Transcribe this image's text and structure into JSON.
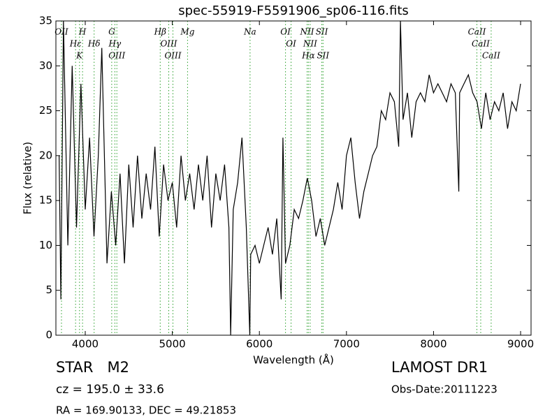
{
  "chart_data": {
    "type": "line",
    "title": "spec-55919-F5591906_sp06-116.fits",
    "x_label": "Wavelength (Å)",
    "y_label": "Flux (relative)",
    "xlim": [
      3663,
      9120
    ],
    "ylim": [
      0,
      35
    ],
    "xticks": [
      4000,
      5000,
      6000,
      7000,
      8000,
      9000
    ],
    "yticks": [
      0,
      5,
      10,
      15,
      20,
      25,
      30,
      35
    ],
    "color": "#000000",
    "x": [
      3700,
      3720,
      3750,
      3800,
      3850,
      3900,
      3950,
      4000,
      4050,
      4100,
      4150,
      4190,
      4250,
      4300,
      4350,
      4400,
      4450,
      4500,
      4550,
      4600,
      4650,
      4700,
      4750,
      4800,
      4850,
      4900,
      4950,
      5000,
      5050,
      5100,
      5150,
      5200,
      5250,
      5300,
      5350,
      5400,
      5450,
      5500,
      5550,
      5600,
      5650,
      5670,
      5700,
      5750,
      5800,
      5850,
      5890,
      5900,
      5950,
      6000,
      6050,
      6100,
      6150,
      6200,
      6250,
      6270,
      6300,
      6350,
      6400,
      6450,
      6500,
      6550,
      6600,
      6650,
      6700,
      6750,
      6800,
      6850,
      6900,
      6950,
      7000,
      7050,
      7100,
      7150,
      7200,
      7250,
      7300,
      7350,
      7400,
      7450,
      7500,
      7550,
      7600,
      7620,
      7650,
      7700,
      7750,
      7800,
      7850,
      7900,
      7950,
      8000,
      8050,
      8100,
      8150,
      8200,
      8250,
      8290,
      8300,
      8350,
      8400,
      8450,
      8500,
      8550,
      8600,
      8650,
      8700,
      8750,
      8800,
      8850,
      8900,
      8950,
      9000
    ],
    "values": [
      20,
      4,
      35,
      10,
      30,
      12,
      28,
      14,
      22,
      11,
      20,
      32,
      8,
      16,
      10,
      18,
      8,
      19,
      12,
      20,
      13,
      18,
      14,
      21,
      11,
      19,
      15,
      17,
      12,
      20,
      15,
      18,
      14,
      19,
      15,
      20,
      12,
      18,
      15,
      19,
      12,
      0,
      14,
      17,
      22,
      12,
      0,
      9,
      10,
      8,
      10,
      12,
      9,
      13,
      4,
      22,
      8,
      10,
      14,
      13,
      15,
      17.5,
      15,
      11,
      13,
      10,
      12,
      14,
      17,
      14,
      20,
      22,
      17,
      13,
      16,
      18,
      20,
      21,
      25,
      24,
      27,
      26,
      21,
      35,
      24,
      27,
      22,
      26,
      27,
      26,
      29,
      27,
      28,
      27,
      26,
      28,
      27,
      16,
      27,
      28,
      29,
      27,
      26,
      23,
      27,
      24,
      26,
      25,
      27,
      23,
      26,
      25,
      28
    ],
    "spectral_lines": [
      {
        "label": "OII",
        "x": 3727
      },
      {
        "label": "Hε",
        "x": 3889
      },
      {
        "label": "K",
        "x": 3934
      },
      {
        "label": "H",
        "x": 3969
      },
      {
        "label": "Hδ",
        "x": 4102
      },
      {
        "label": "G",
        "x": 4304
      },
      {
        "label": "Hγ",
        "x": 4340
      },
      {
        "label": "OIII",
        "x": 4363
      },
      {
        "label": "Hβ",
        "x": 4861
      },
      {
        "label": "OIII",
        "x": 4959
      },
      {
        "label": "OIII",
        "x": 5007
      },
      {
        "label": "Mg",
        "x": 5175
      },
      {
        "label": "Na",
        "x": 5893
      },
      {
        "label": "OI",
        "x": 6300
      },
      {
        "label": "OI",
        "x": 6364
      },
      {
        "label": "NII",
        "x": 6548
      },
      {
        "label": "Hα",
        "x": 6563
      },
      {
        "label": "NII",
        "x": 6583
      },
      {
        "label": "SII",
        "x": 6717
      },
      {
        "label": "SII",
        "x": 6731
      },
      {
        "label": "CaII",
        "x": 8498
      },
      {
        "label": "CaII",
        "x": 8542
      },
      {
        "label": "CaII",
        "x": 8662
      }
    ],
    "line_color": "#2ca02c"
  },
  "info": {
    "object": "STAR   M2",
    "survey": "LAMOST DR1",
    "cz": "cz = 195.0 ± 33.6",
    "obs_date": "Obs-Date:20111223",
    "coords": "RA = 169.90133, DEC = 49.21853"
  }
}
